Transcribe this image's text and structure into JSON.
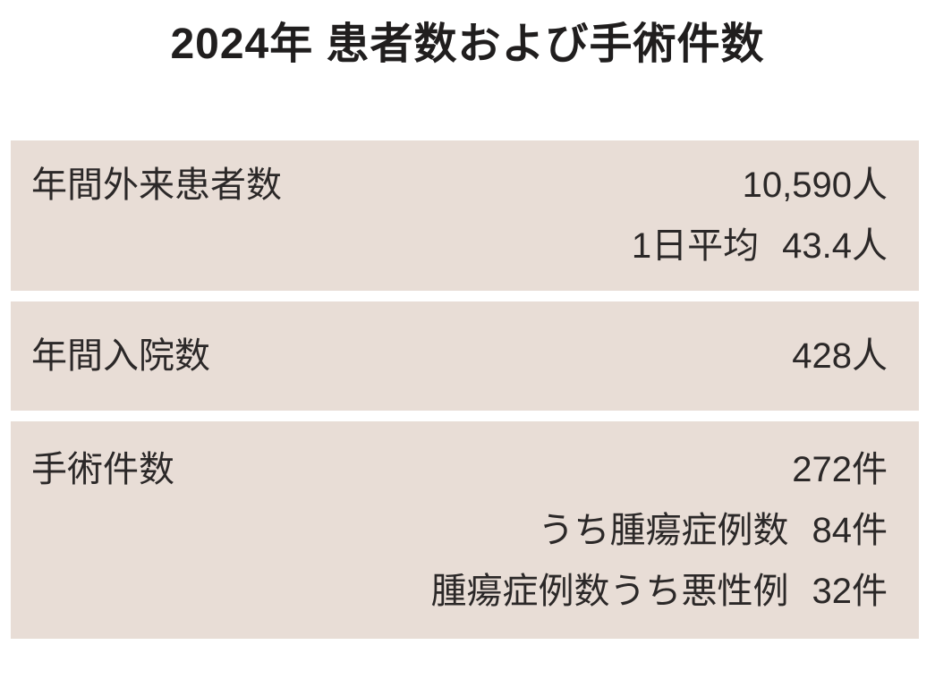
{
  "page": {
    "title": "2024年 患者数および手術件数",
    "colors": {
      "page_bg": "#ffffff",
      "panel_bg": "#e8ddd6",
      "text": "#2b2828",
      "title_text": "#201e1e"
    }
  },
  "sections": [
    {
      "name": "outpatient",
      "rows": [
        {
          "label": "年間外来患者数",
          "sublabel": "",
          "value": "10,590人"
        },
        {
          "label": "",
          "sublabel": "1日平均",
          "value": "43.4人"
        }
      ]
    },
    {
      "name": "inpatient",
      "rows": [
        {
          "label": "年間入院数",
          "sublabel": "",
          "value": "428人"
        }
      ]
    },
    {
      "name": "surgery",
      "rows": [
        {
          "label": "手術件数",
          "sublabel": "",
          "value": "272件"
        },
        {
          "label": "",
          "sublabel": "うち腫瘍症例数",
          "value": "84件"
        },
        {
          "label": "",
          "sublabel": "腫瘍症例数うち悪性例",
          "value": "32件"
        }
      ]
    }
  ]
}
